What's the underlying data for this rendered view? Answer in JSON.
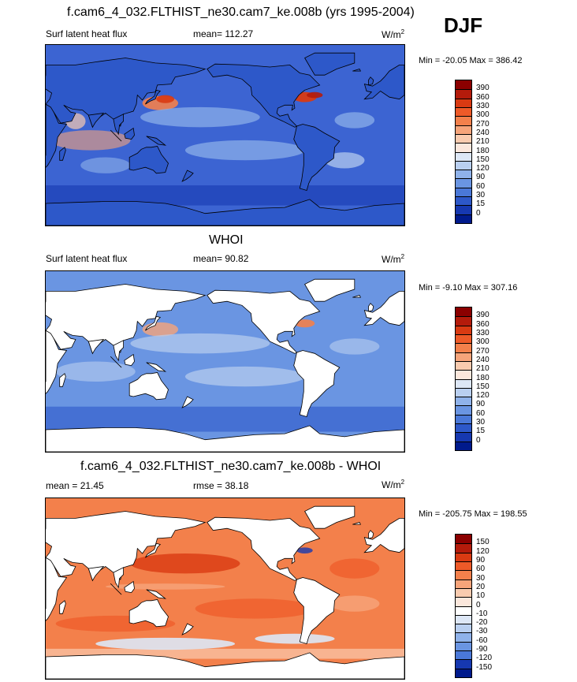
{
  "season": "DJF",
  "panels": [
    {
      "id": "model",
      "title": "f.cam6_4_032.FLTHIST_ne30.cam7_ke.008b (yrs 1995-2004)",
      "variable": "Surf latent heat flux",
      "stat_label": "mean=",
      "stat_value": "112.27",
      "rmse_label": "",
      "rmse_value": "",
      "units": "W/m",
      "units_exp": "2",
      "min_max": "Min = -20.05 Max = 386.42",
      "levels": [
        "390",
        "360",
        "330",
        "300",
        "270",
        "240",
        "210",
        "180",
        "150",
        "120",
        "90",
        "60",
        "30",
        "15",
        "0"
      ],
      "colors": [
        "#8b0000",
        "#b41b0b",
        "#d93a12",
        "#ee5a28",
        "#f3804b",
        "#f6a47a",
        "#f9cbaf",
        "#fbe7dc",
        "#dde7f6",
        "#b9cff0",
        "#8fb2ea",
        "#6a95e2",
        "#4a78d8",
        "#2d58c9",
        "#1638b0",
        "#001a8c"
      ],
      "ocean_base": "#3c64d2"
    },
    {
      "id": "obs",
      "title": "WHOI",
      "variable": "Surf latent heat flux",
      "stat_label": "mean=",
      "stat_value": "90.82",
      "rmse_label": "",
      "rmse_value": "",
      "units": "W/m",
      "units_exp": "2",
      "min_max": "Min =  -9.10 Max = 307.16",
      "levels": [
        "390",
        "360",
        "330",
        "300",
        "270",
        "240",
        "210",
        "180",
        "150",
        "120",
        "90",
        "60",
        "30",
        "15",
        "0"
      ],
      "colors": [
        "#8b0000",
        "#b41b0b",
        "#d93a12",
        "#ee5a28",
        "#f3804b",
        "#f6a47a",
        "#f9cbaf",
        "#fbe7dc",
        "#dde7f6",
        "#b9cff0",
        "#8fb2ea",
        "#6a95e2",
        "#4a78d8",
        "#2d58c9",
        "#1638b0",
        "#001a8c"
      ],
      "ocean_base": "#6a95e2"
    },
    {
      "id": "diff",
      "title": "f.cam6_4_032.FLTHIST_ne30.cam7_ke.008b - WHOI",
      "variable": "",
      "stat_label": "mean =",
      "stat_value": "21.45",
      "rmse_label": "rmse =",
      "rmse_value": "38.18",
      "units": "W/m",
      "units_exp": "2",
      "min_max": "Min = -205.75 Max = 198.55",
      "levels": [
        "150",
        "120",
        "90",
        "60",
        "30",
        "20",
        "10",
        "0",
        "-10",
        "-20",
        "-30",
        "-60",
        "-90",
        "-120",
        "-150"
      ],
      "colors": [
        "#8b0000",
        "#b41b0b",
        "#d93a12",
        "#ee5a28",
        "#f3804b",
        "#f6a47a",
        "#f9cbaf",
        "#fbe7dc",
        "#ffffff",
        "#dde7f6",
        "#b9cff0",
        "#8fb2ea",
        "#6a95e2",
        "#4a78d8",
        "#1638b0",
        "#001a8c"
      ],
      "ocean_base": "#f3804b"
    }
  ]
}
